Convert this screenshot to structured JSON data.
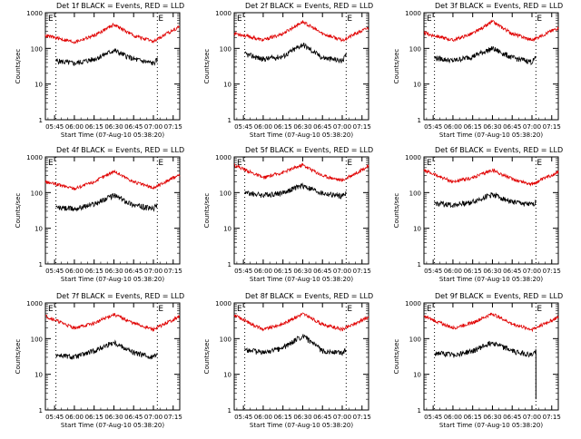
{
  "x_ticks": [
    "05:45",
    "06:00",
    "06:15",
    "06:30",
    "06:45",
    "07:00",
    "07:15"
  ],
  "x_label": "Start Time (07-Aug-10 05:38:20)",
  "y_label": "Counts/sec",
  "y_ticks": [
    "1",
    "10",
    "100",
    "1000"
  ],
  "marker_left": "E",
  "marker_right": "E",
  "colors": {
    "events": "#000000",
    "lld": "#e00000",
    "axes": "#000000"
  },
  "chart_data": [
    {
      "type": "line",
      "title": "Det 1f BLACK = Events, RED = LLD",
      "ylim": [
        1,
        1000
      ],
      "yscale": "log",
      "events_range": [
        0.12,
        0.62
      ],
      "lld_range": [
        0.0,
        1.0
      ],
      "series": [
        {
          "name": "BLACK = Events",
          "x": [
            "05:46",
            "06:00",
            "06:15",
            "06:30",
            "06:45",
            "07:00",
            "07:03"
          ],
          "values": [
            45,
            38,
            50,
            88,
            50,
            38,
            48
          ]
        },
        {
          "name": "RED = LLD",
          "x": [
            "05:38",
            "06:00",
            "06:15",
            "06:30",
            "06:45",
            "07:00",
            "07:20"
          ],
          "values": [
            230,
            150,
            230,
            470,
            230,
            155,
            420
          ]
        }
      ]
    },
    {
      "type": "line",
      "title": "Det 2f BLACK = Events, RED = LLD",
      "ylim": [
        1,
        1000
      ],
      "yscale": "log",
      "events_range": [
        0.12,
        0.62
      ],
      "lld_range": [
        0.0,
        1.0
      ],
      "series": [
        {
          "name": "BLACK = Events",
          "x": [
            "05:46",
            "06:00",
            "06:15",
            "06:30",
            "06:45",
            "07:00",
            "07:03"
          ],
          "values": [
            70,
            50,
            60,
            130,
            55,
            45,
            65
          ]
        },
        {
          "name": "RED = LLD",
          "x": [
            "05:38",
            "06:00",
            "06:15",
            "06:30",
            "06:45",
            "07:00",
            "07:20"
          ],
          "values": [
            270,
            170,
            260,
            560,
            260,
            170,
            380
          ]
        }
      ]
    },
    {
      "type": "line",
      "title": "Det 3f BLACK = Events, RED = LLD",
      "ylim": [
        1,
        1000
      ],
      "yscale": "log",
      "events_range": [
        0.12,
        0.62
      ],
      "lld_range": [
        0.0,
        1.0
      ],
      "series": [
        {
          "name": "BLACK = Events",
          "x": [
            "05:46",
            "06:00",
            "06:15",
            "06:30",
            "06:45",
            "07:00",
            "07:03"
          ],
          "values": [
            55,
            45,
            60,
            100,
            55,
            42,
            55
          ]
        },
        {
          "name": "RED = LLD",
          "x": [
            "05:38",
            "06:00",
            "06:15",
            "06:30",
            "06:45",
            "07:00",
            "07:20"
          ],
          "values": [
            270,
            170,
            260,
            560,
            260,
            170,
            380
          ]
        }
      ]
    },
    {
      "type": "line",
      "title": "Det 4f BLACK = Events, RED = LLD",
      "ylim": [
        1,
        1000
      ],
      "yscale": "log",
      "events_range": [
        0.12,
        0.62
      ],
      "lld_range": [
        0.0,
        1.0
      ],
      "series": [
        {
          "name": "BLACK = Events",
          "x": [
            "05:46",
            "06:00",
            "06:15",
            "06:30",
            "06:45",
            "07:00",
            "07:03"
          ],
          "values": [
            38,
            35,
            48,
            85,
            45,
            35,
            48
          ]
        },
        {
          "name": "RED = LLD",
          "x": [
            "05:38",
            "06:00",
            "06:15",
            "06:30",
            "06:45",
            "07:00",
            "07:20"
          ],
          "values": [
            200,
            130,
            200,
            400,
            200,
            135,
            320
          ]
        }
      ]
    },
    {
      "type": "line",
      "title": "Det 5f BLACK = Events, RED = LLD",
      "ylim": [
        1,
        1000
      ],
      "yscale": "log",
      "events_range": [
        0.12,
        0.62
      ],
      "lld_range": [
        0.0,
        1.0
      ],
      "series": [
        {
          "name": "BLACK = Events",
          "x": [
            "05:46",
            "06:00",
            "06:15",
            "06:30",
            "06:45",
            "07:00",
            "07:03"
          ],
          "values": [
            100,
            85,
            100,
            160,
            95,
            80,
            100
          ]
        },
        {
          "name": "RED = LLD",
          "x": [
            "05:38",
            "06:00",
            "06:15",
            "06:30",
            "06:45",
            "07:00",
            "07:20"
          ],
          "values": [
            600,
            260,
            370,
            600,
            300,
            220,
            550
          ]
        }
      ]
    },
    {
      "type": "line",
      "title": "Det 6f BLACK = Events, RED = LLD",
      "ylim": [
        1,
        1000
      ],
      "yscale": "log",
      "events_range": [
        0.12,
        0.62
      ],
      "lld_range": [
        0.0,
        1.0
      ],
      "series": [
        {
          "name": "BLACK = Events",
          "x": [
            "05:46",
            "06:00",
            "06:15",
            "06:30",
            "06:45",
            "07:00",
            "07:03"
          ],
          "values": [
            50,
            45,
            55,
            90,
            55,
            45,
            55
          ]
        },
        {
          "name": "RED = LLD",
          "x": [
            "05:38",
            "06:00",
            "06:15",
            "06:30",
            "06:45",
            "07:00",
            "07:20"
          ],
          "values": [
            420,
            200,
            260,
            430,
            240,
            170,
            380
          ]
        }
      ]
    },
    {
      "type": "line",
      "title": "Det 7f BLACK = Events, RED = LLD",
      "ylim": [
        1,
        1000
      ],
      "yscale": "log",
      "events_range": [
        0.12,
        0.62
      ],
      "lld_range": [
        0.0,
        1.0
      ],
      "series": [
        {
          "name": "BLACK = Events",
          "x": [
            "05:46",
            "06:00",
            "06:15",
            "06:30",
            "06:45",
            "07:00",
            "07:03"
          ],
          "values": [
            35,
            30,
            45,
            80,
            40,
            30,
            45
          ]
        },
        {
          "name": "RED = LLD",
          "x": [
            "05:38",
            "06:00",
            "06:15",
            "06:30",
            "06:45",
            "07:00",
            "07:20"
          ],
          "values": [
            430,
            200,
            270,
            480,
            270,
            180,
            420
          ]
        }
      ]
    },
    {
      "type": "line",
      "title": "Det 8f BLACK = Events, RED = LLD",
      "ylim": [
        1,
        1000
      ],
      "yscale": "log",
      "events_range": [
        0.12,
        0.62
      ],
      "lld_range": [
        0.0,
        1.0
      ],
      "series": [
        {
          "name": "BLACK = Events",
          "x": [
            "05:46",
            "06:00",
            "06:15",
            "06:30",
            "06:45",
            "07:00",
            "07:03"
          ],
          "values": [
            50,
            40,
            55,
            120,
            45,
            40,
            50
          ]
        },
        {
          "name": "RED = LLD",
          "x": [
            "05:38",
            "06:00",
            "06:15",
            "06:30",
            "06:45",
            "07:00",
            "07:20"
          ],
          "values": [
            450,
            180,
            260,
            500,
            250,
            180,
            400
          ]
        }
      ]
    },
    {
      "type": "line",
      "title": "Det 9f BLACK = Events, RED = LLD",
      "ylim": [
        1,
        1000
      ],
      "yscale": "log",
      "events_range": [
        0.12,
        0.62
      ],
      "lld_range": [
        0.0,
        1.0
      ],
      "series": [
        {
          "name": "BLACK = Events",
          "x": [
            "05:46",
            "06:00",
            "06:15",
            "06:30",
            "06:45",
            "07:00",
            "07:03"
          ],
          "values": [
            40,
            35,
            45,
            80,
            45,
            35,
            45
          ]
        },
        {
          "name": "RED = LLD",
          "x": [
            "05:38",
            "06:00",
            "06:15",
            "06:30",
            "06:45",
            "07:00",
            "07:20"
          ],
          "values": [
            420,
            200,
            280,
            500,
            260,
            180,
            400
          ]
        }
      ]
    }
  ]
}
